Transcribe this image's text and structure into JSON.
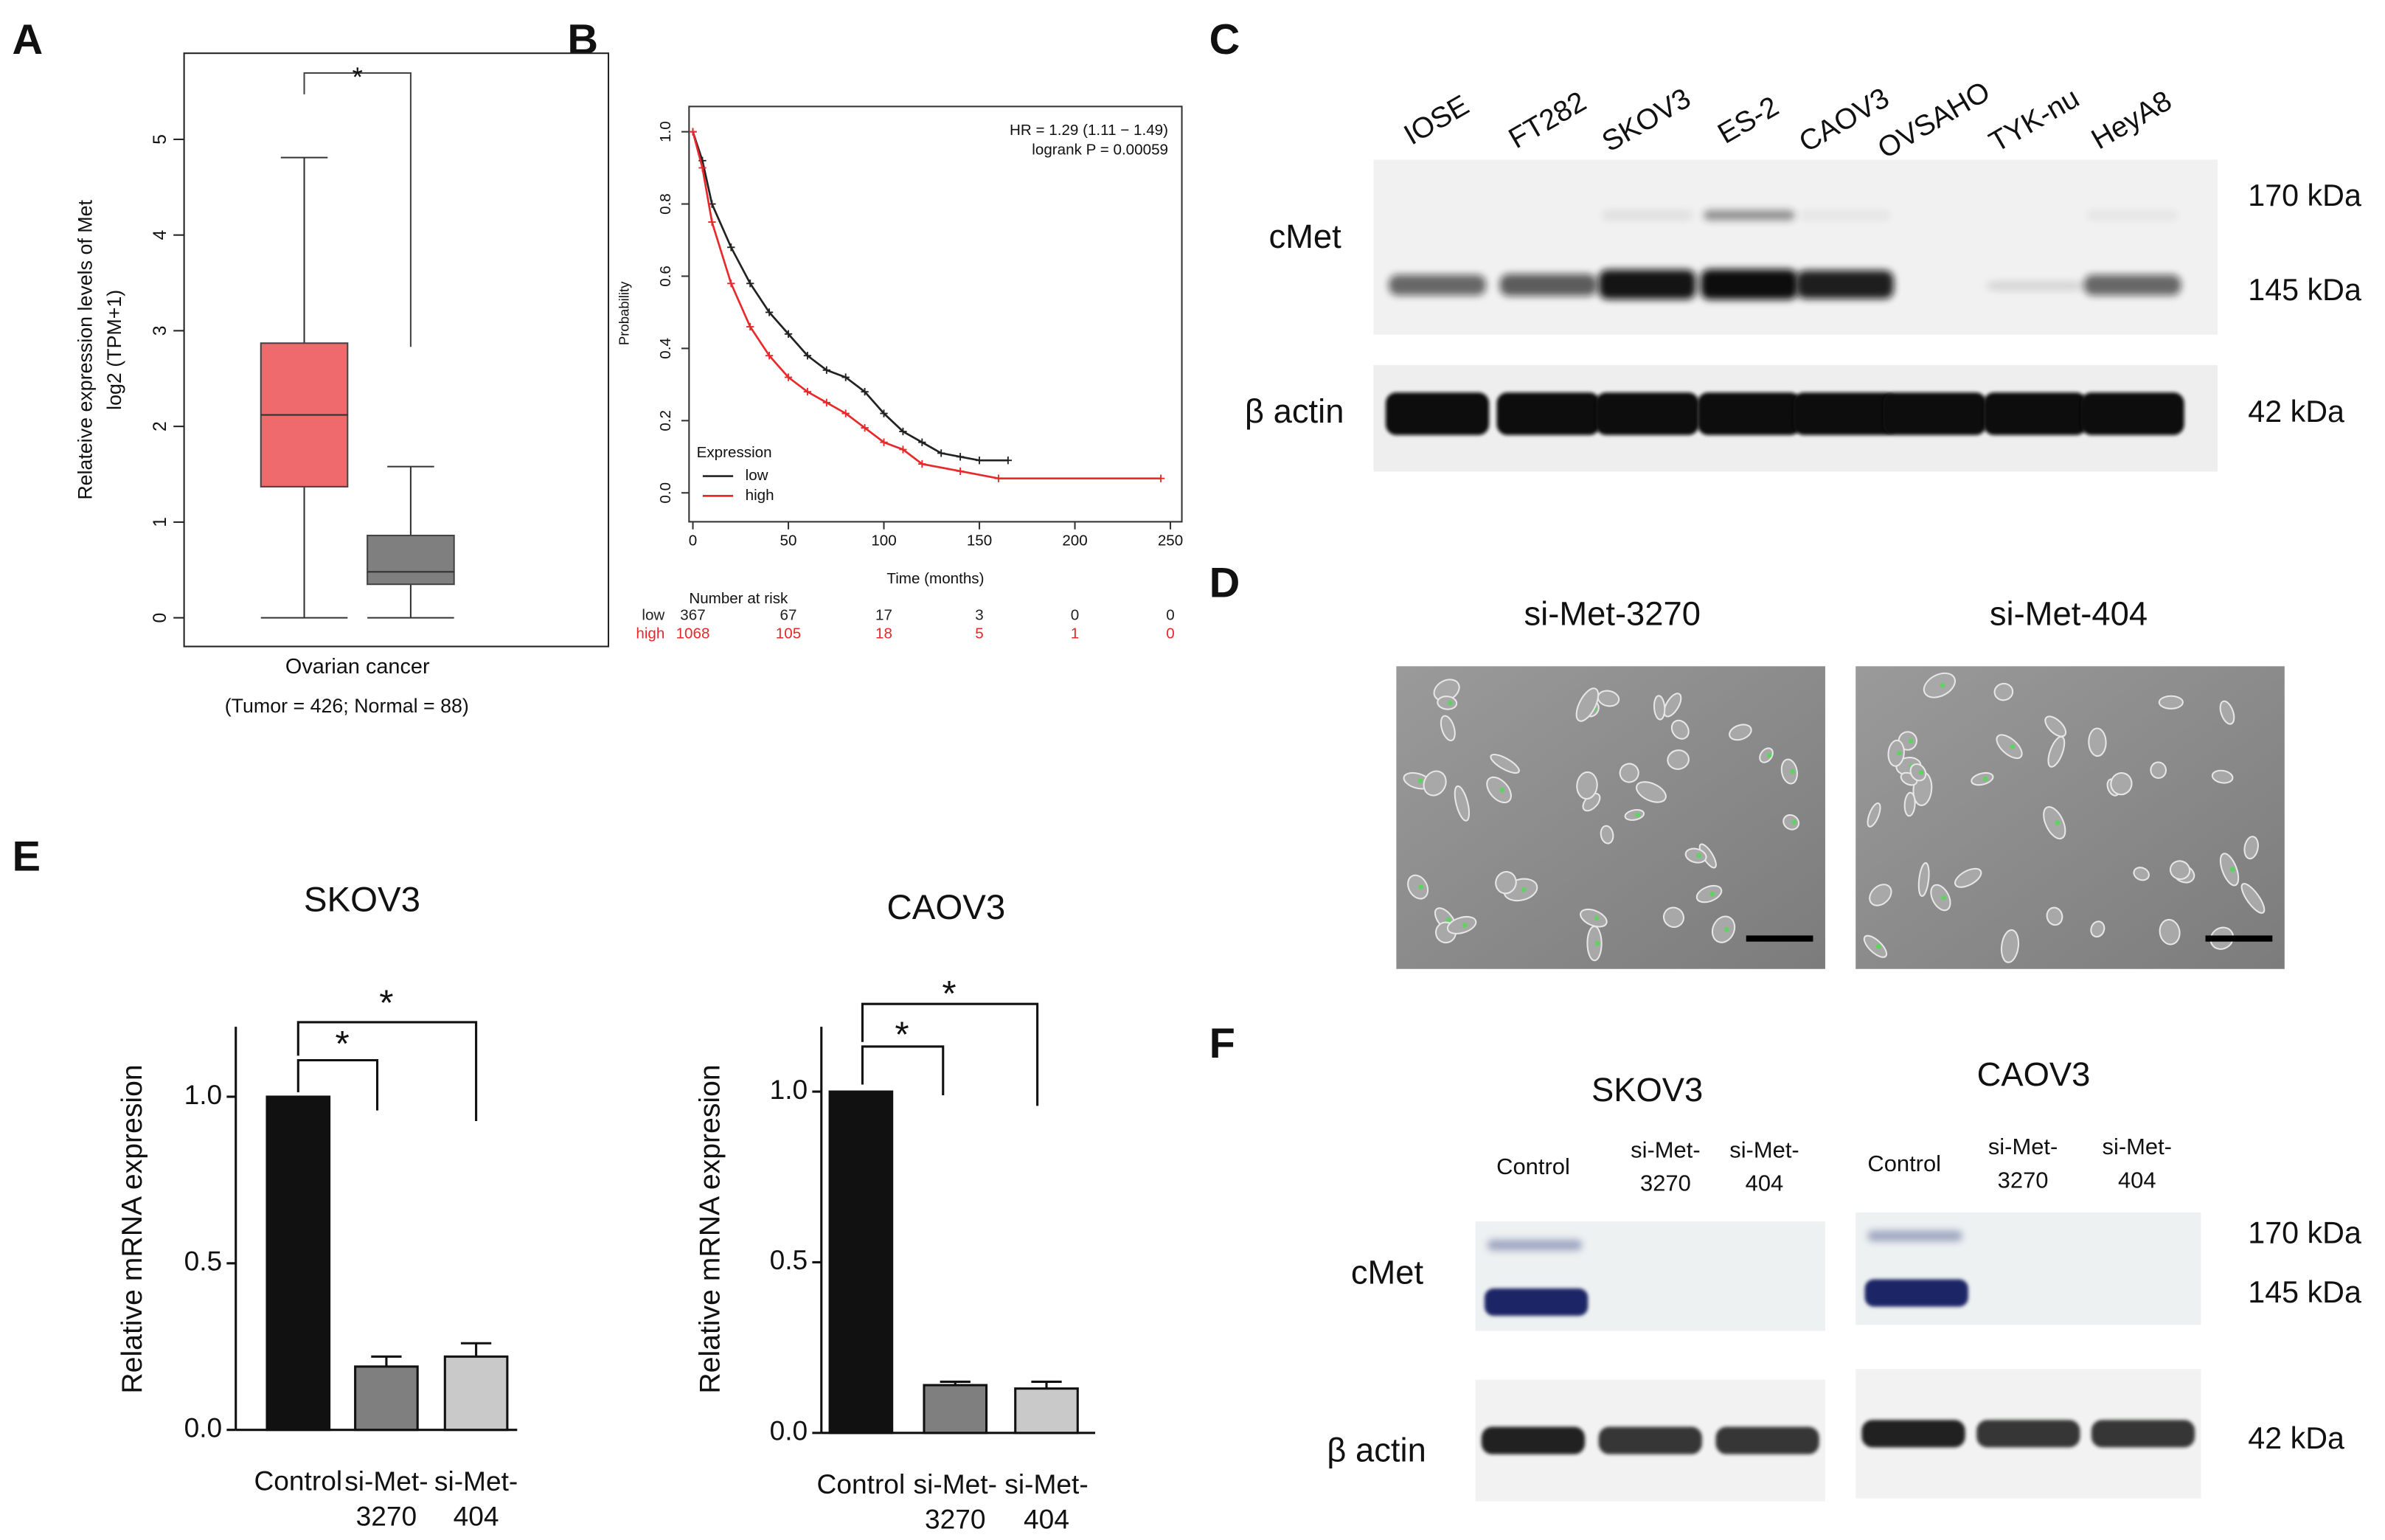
{
  "panel_labels": [
    "A",
    "B",
    "C",
    "D",
    "E",
    "F"
  ],
  "chart_data": [
    {
      "type": "box",
      "y_label_lines": [
        "Relateive expression levels of Met",
        "log2 (TPM+1)"
      ],
      "x_label": "Ovarian cancer",
      "note": "(Tumor = 426; Normal = 88)",
      "significance": "*",
      "ylim": [
        -0.3,
        5.9
      ],
      "yticks": [
        0,
        1,
        2,
        3,
        4,
        5
      ],
      "boxes": [
        {
          "color": "#ef6a6c",
          "whisker_low": 0,
          "q1": 1.37,
          "median": 2.12,
          "q3": 2.87,
          "whisker_high": 4.81
        },
        {
          "color": "#7f7f7f",
          "whisker_low": 0,
          "q1": 0.35,
          "median": 0.48,
          "q3": 0.86,
          "whisker_high": 1.58
        }
      ]
    },
    {
      "type": "line",
      "x_label": "Time (months)",
      "y_label": "Probability",
      "annotations": [
        "HR = 1.29 (1.11 − 1.49)",
        "logrank P = 0.00059"
      ],
      "legend_title": "Expression",
      "xlim": [
        -2,
        256
      ],
      "ylim": [
        -0.08,
        1.07
      ],
      "xticks": [
        0,
        50,
        100,
        150,
        200,
        250
      ],
      "yticks": [
        {
          "value": 0,
          "label": "0.0"
        },
        {
          "value": 0.2,
          "label": "0.2"
        },
        {
          "value": 0.4,
          "label": "0.4"
        },
        {
          "value": 0.6,
          "label": "0.6"
        },
        {
          "value": 0.8,
          "label": "0.8"
        },
        {
          "value": 1.0,
          "label": "1.0"
        }
      ],
      "series": [
        {
          "name": "low",
          "color": "#222222",
          "x": [
            0,
            5,
            10,
            20,
            30,
            40,
            50,
            60,
            70,
            80,
            90,
            100,
            110,
            120,
            130,
            140,
            150,
            165
          ],
          "values": [
            1,
            0.92,
            0.8,
            0.68,
            0.58,
            0.5,
            0.44,
            0.38,
            0.34,
            0.32,
            0.28,
            0.22,
            0.17,
            0.14,
            0.11,
            0.1,
            0.09,
            0.09
          ]
        },
        {
          "name": "high",
          "color": "#e8292b",
          "x": [
            0,
            5,
            10,
            20,
            30,
            40,
            50,
            60,
            70,
            80,
            90,
            100,
            110,
            120,
            140,
            160,
            245
          ],
          "values": [
            1,
            0.9,
            0.75,
            0.58,
            0.46,
            0.38,
            0.32,
            0.28,
            0.25,
            0.22,
            0.18,
            0.14,
            0.12,
            0.08,
            0.06,
            0.04,
            0.04
          ]
        }
      ],
      "risk_table": {
        "title": "Number at risk",
        "rows": [
          {
            "label": "low",
            "values": [
              367,
              67,
              17,
              3,
              0,
              0
            ]
          },
          {
            "label": "high",
            "values": [
              1068,
              105,
              18,
              5,
              1,
              0
            ]
          }
        ]
      }
    },
    {
      "type": "bar",
      "title": "SKOV3",
      "y_label": "Relative mRNA expresion",
      "categories": [
        "Control",
        "si-Met-\n3270",
        "si-Met-\n404"
      ],
      "values": [
        1.0,
        0.19,
        0.22
      ],
      "error": [
        0,
        0.03,
        0.04
      ],
      "colors": [
        "#111111",
        "#7f7f7f",
        "#c9c9c9"
      ],
      "annotations": [
        "*",
        "*"
      ],
      "ylim": [
        0,
        1.21
      ],
      "yticks": [
        {
          "value": 0,
          "label": "0.0"
        },
        {
          "value": 0.5,
          "label": "0.5"
        },
        {
          "value": 1.0,
          "label": "1.0"
        }
      ]
    },
    {
      "type": "bar",
      "title": "CAOV3",
      "y_label": "Relative mRNA expresion",
      "categories": [
        "Control",
        "si-Met-\n3270",
        "si-Met-\n404"
      ],
      "values": [
        1.0,
        0.14,
        0.13
      ],
      "error": [
        0,
        0.01,
        0.02
      ],
      "colors": [
        "#111111",
        "#7f7f7f",
        "#c9c9c9"
      ],
      "annotations": [
        "*",
        "*"
      ],
      "ylim": [
        0,
        1.19
      ],
      "yticks": [
        {
          "value": 0,
          "label": "0.0"
        },
        {
          "value": 0.5,
          "label": "0.5"
        },
        {
          "value": 1.0,
          "label": "1.0"
        }
      ]
    }
  ],
  "blot_c": {
    "lanes": [
      "IOSE",
      "FT282",
      "SKOV3",
      "ES-2",
      "CAOV3",
      "OVSAHO",
      "TYK-nu",
      "HeyA8"
    ],
    "rows": [
      "cMet",
      "β actin"
    ],
    "markers": [
      "170 kDa",
      "145 kDa",
      "42 kDa"
    ]
  },
  "microscopy_d": {
    "titles": [
      "si-Met-3270",
      "si-Met-404"
    ]
  },
  "blot_f": {
    "cell_lines": [
      "SKOV3",
      "CAOV3"
    ],
    "lanes": [
      "Control",
      "si-Met-\n3270",
      "si-Met-\n404"
    ],
    "rows": [
      "cMet",
      "β actin"
    ],
    "markers": [
      "170 kDa",
      "145 kDa",
      "42 kDa"
    ]
  }
}
